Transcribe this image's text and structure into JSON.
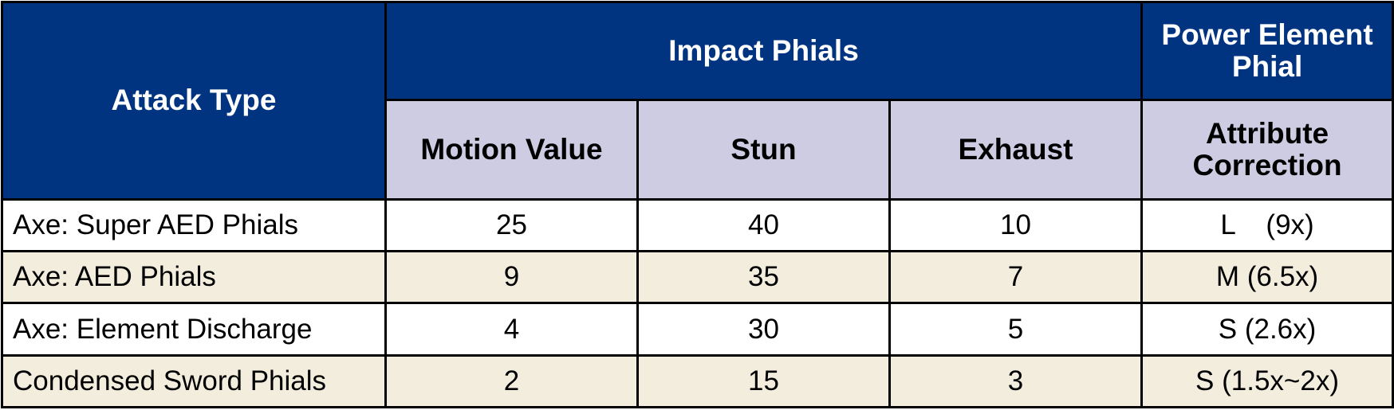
{
  "headers": {
    "attack_type": "Attack Type",
    "impact_phials": "Impact Phials",
    "power_element_phial": [
      "Power Element",
      "Phial"
    ],
    "motion_value": "Motion Value",
    "stun": "Stun",
    "exhaust": "Exhaust",
    "attribute_correction": [
      "Attribute",
      "Correction"
    ]
  },
  "rows": [
    {
      "attack": "Axe: Super AED Phials",
      "motion_value": "25",
      "stun": "40",
      "exhaust": "10",
      "attribute": "L    (9x)"
    },
    {
      "attack": "Axe: AED Phials",
      "motion_value": "9",
      "stun": "35",
      "exhaust": "7",
      "attribute": "M (6.5x)"
    },
    {
      "attack": "Axe: Element Discharge",
      "motion_value": "4",
      "stun": "30",
      "exhaust": "5",
      "attribute": "S (2.6x)"
    },
    {
      "attack": "Condensed Sword Phials",
      "motion_value": "2",
      "stun": "15",
      "exhaust": "3",
      "attribute": "S (1.5x~2x)"
    }
  ]
}
